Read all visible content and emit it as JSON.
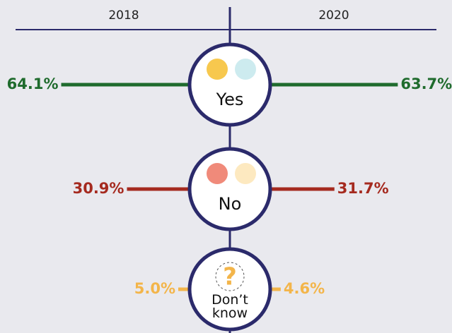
{
  "chart_data": {
    "type": "butterfly",
    "categories": [
      "Yes",
      "No",
      "Don’t know"
    ],
    "colors": [
      "#1f6b2d",
      "#a52a1f",
      "#f3b54a"
    ],
    "series": [
      {
        "name": "2018",
        "values": [
          64.1,
          30.9,
          5.0
        ],
        "value_labels": [
          "64.1%",
          "30.9%",
          "5.0%"
        ]
      },
      {
        "name": "2020",
        "values": [
          63.7,
          31.7,
          4.6
        ],
        "value_labels": [
          "63.7%",
          "31.7%",
          "4.6%"
        ]
      }
    ]
  }
}
